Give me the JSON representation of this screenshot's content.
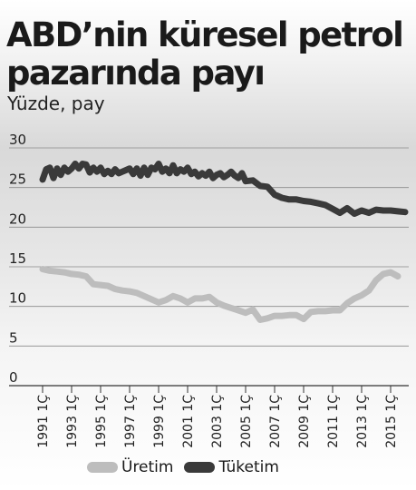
{
  "chart_data": {
    "type": "line",
    "title": "ABD’nin küresel petrol pazarında payı",
    "subtitle": "Yüzde, pay",
    "ylim": [
      0,
      30
    ],
    "yticks": [
      0,
      5,
      10,
      15,
      20,
      25,
      30
    ],
    "xlim": [
      1991,
      2016
    ],
    "x_tick_years": [
      1991,
      1993,
      1995,
      1997,
      1999,
      2001,
      2003,
      2005,
      2007,
      2009,
      2011,
      2013,
      2015
    ],
    "x_tick_labels": [
      "1991 1Ç",
      "1993 1Ç",
      "1995 1Ç",
      "1997 1Ç",
      "1999 1Ç",
      "2001 1Ç",
      "2003 1Ç",
      "2005 1Ç",
      "2007 1Ç",
      "2009 1Ç",
      "2011 1Ç",
      "2013 1Ç",
      "2015 1Ç"
    ],
    "grid": true,
    "legend_position": "bottom",
    "series": [
      {
        "name": "Üretim",
        "color": "#bdbdbd",
        "x": [
          1991.0,
          1991.5,
          1992.0,
          1992.5,
          1993.0,
          1993.5,
          1994.0,
          1994.5,
          1995.0,
          1995.5,
          1996.0,
          1996.5,
          1997.0,
          1997.5,
          1998.0,
          1998.5,
          1999.0,
          1999.5,
          2000.0,
          2000.5,
          2001.0,
          2001.5,
          2002.0,
          2002.5,
          2003.0,
          2003.5,
          2004.0,
          2004.5,
          2005.0,
          2005.5,
          2006.0,
          2006.5,
          2007.0,
          2007.5,
          2008.0,
          2008.5,
          2009.0,
          2009.5,
          2010.0,
          2010.5,
          2011.0,
          2011.5,
          2012.0,
          2012.5,
          2013.0,
          2013.5,
          2014.0,
          2014.5,
          2015.0,
          2015.5
        ],
        "values": [
          14.7,
          14.5,
          14.4,
          14.3,
          14.1,
          14.0,
          13.8,
          12.8,
          12.7,
          12.6,
          12.2,
          12.0,
          11.9,
          11.7,
          11.3,
          10.9,
          10.5,
          10.8,
          11.3,
          11.0,
          10.5,
          11.0,
          11.0,
          11.2,
          10.5,
          10.1,
          9.8,
          9.5,
          9.2,
          9.6,
          8.3,
          8.5,
          8.8,
          8.8,
          8.9,
          8.9,
          8.4,
          9.3,
          9.4,
          9.4,
          9.5,
          9.5,
          10.4,
          11.0,
          11.4,
          12.0,
          13.3,
          14.1,
          14.3,
          13.8
        ]
      },
      {
        "name": "Tüketim",
        "color": "#3a3a3a",
        "x": [
          1991.0,
          1991.25,
          1991.5,
          1991.75,
          1992.0,
          1992.25,
          1992.5,
          1992.75,
          1993.0,
          1993.25,
          1993.5,
          1993.75,
          1994.0,
          1994.25,
          1994.5,
          1994.75,
          1995.0,
          1995.25,
          1995.5,
          1995.75,
          1996.0,
          1996.25,
          1996.5,
          1996.75,
          1997.0,
          1997.25,
          1997.5,
          1997.75,
          1998.0,
          1998.25,
          1998.5,
          1998.75,
          1999.0,
          1999.25,
          1999.5,
          1999.75,
          2000.0,
          2000.25,
          2000.5,
          2000.75,
          2001.0,
          2001.25,
          2001.5,
          2001.75,
          2002.0,
          2002.25,
          2002.5,
          2002.75,
          2003.0,
          2003.25,
          2003.5,
          2003.75,
          2004.0,
          2004.25,
          2004.5,
          2004.75,
          2005.0,
          2005.5,
          2006.0,
          2006.5,
          2007.0,
          2007.5,
          2008.0,
          2008.5,
          2009.0,
          2009.5,
          2010.0,
          2010.5,
          2011.0,
          2011.5,
          2012.0,
          2012.5,
          2013.0,
          2013.5,
          2014.0,
          2014.5,
          2015.0,
          2015.5,
          2016.0
        ],
        "values": [
          26.0,
          27.3,
          27.5,
          26.2,
          27.4,
          26.6,
          27.5,
          27.0,
          27.4,
          28.0,
          27.4,
          28.0,
          27.9,
          26.9,
          27.5,
          27.0,
          27.5,
          26.7,
          27.1,
          26.7,
          27.3,
          26.8,
          27.0,
          27.2,
          27.4,
          26.7,
          27.4,
          26.5,
          27.5,
          26.6,
          27.5,
          27.3,
          28.0,
          27.0,
          27.4,
          26.8,
          27.8,
          26.8,
          27.3,
          27.0,
          27.5,
          26.7,
          27.0,
          26.4,
          26.8,
          26.5,
          27.0,
          26.2,
          26.6,
          26.8,
          26.3,
          26.6,
          27.0,
          26.5,
          26.2,
          26.8,
          25.8,
          25.9,
          25.2,
          25.1,
          24.1,
          23.7,
          23.5,
          23.5,
          23.3,
          23.2,
          23.0,
          22.8,
          22.3,
          21.8,
          22.4,
          21.7,
          22.1,
          21.8,
          22.2,
          22.1,
          22.1,
          22.0,
          21.9
        ]
      }
    ]
  }
}
